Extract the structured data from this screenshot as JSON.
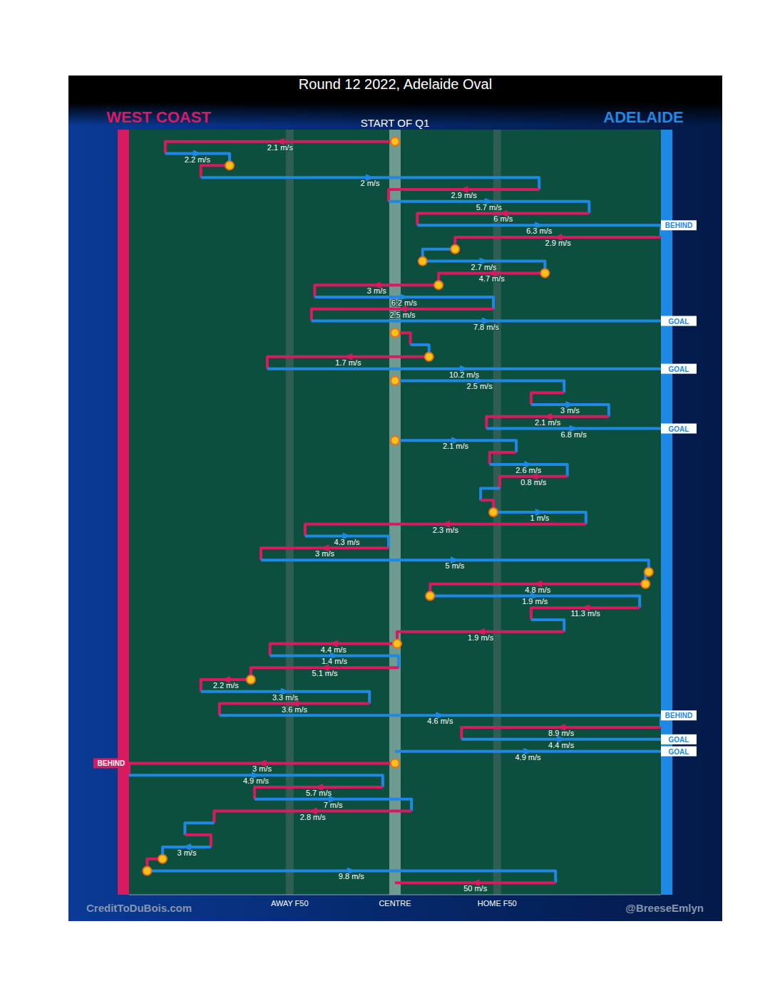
{
  "chart_data": {
    "type": "chain",
    "title": "Round 12 2022, Adelaide Oval",
    "subtitle": "START OF Q1",
    "series": [
      {
        "name": "WEST COAST",
        "color": "#d81b60"
      },
      {
        "name": "ADELAIDE",
        "color": "#1e88e5"
      }
    ],
    "credits": {
      "left": "CreditToDuBois.com",
      "right": "@BreeseEmlyn"
    },
    "speed_unit": "m/s",
    "xlim": [
      0,
      100
    ],
    "xticks": [
      {
        "value": 30.2,
        "label": "AWAY F50"
      },
      {
        "value": 50,
        "label": "CENTRE"
      },
      {
        "value": 69.2,
        "label": "HOME F50"
      }
    ],
    "ylim": [
      -1,
      63
    ],
    "tick_labels": "x",
    "segments": [
      {
        "team": "WEST COAST",
        "from": 50,
        "to": 6.8,
        "speed": 2.1,
        "stoppage": true
      },
      {
        "team": "ADELAIDE",
        "from": 6.8,
        "to": 18.9,
        "speed": 2.2
      },
      {
        "team": "WEST COAST",
        "from": 18.9,
        "to": 13.5,
        "stoppage": true
      },
      {
        "team": "ADELAIDE",
        "from": 13.5,
        "to": 77.1,
        "speed": 2
      },
      {
        "team": "WEST COAST",
        "from": 77.1,
        "to": 48.8,
        "speed": 2.9
      },
      {
        "team": "ADELAIDE",
        "from": 48.8,
        "to": 86.5,
        "speed": 5.7
      },
      {
        "team": "WEST COAST",
        "from": 86.5,
        "to": 54.2,
        "speed": 6
      },
      {
        "team": "ADELAIDE",
        "from": 54.2,
        "to": 100,
        "speed": 6.3,
        "outcome": "BEHIND"
      },
      {
        "team": "WEST COAST",
        "from": 100,
        "to": 61.3,
        "speed": 2.9
      },
      {
        "team": "ADELAIDE",
        "from": 61.3,
        "to": 55.2,
        "stoppage": true
      },
      {
        "team": "ADELAIDE",
        "from": 55.2,
        "to": 78.2,
        "speed": 2.7,
        "stoppage": true
      },
      {
        "team": "WEST COAST",
        "from": 78.2,
        "to": 58.2,
        "speed": 4.7,
        "stoppage": true
      },
      {
        "team": "WEST COAST",
        "from": 58.2,
        "to": 34.9,
        "speed": 3,
        "stoppage": true
      },
      {
        "team": "ADELAIDE",
        "from": 34.9,
        "to": 68.5,
        "speed": 6.2
      },
      {
        "team": "WEST COAST",
        "from": 68.5,
        "to": 34.3,
        "speed": 2.5
      },
      {
        "team": "ADELAIDE",
        "from": 34.3,
        "to": 100,
        "speed": 7.8,
        "outcome": "GOAL"
      },
      {
        "team": "WEST COAST",
        "from": 50,
        "to": 52.9,
        "stoppage": true
      },
      {
        "team": "ADELAIDE",
        "from": 52.9,
        "to": 56.4
      },
      {
        "team": "WEST COAST",
        "from": 56.4,
        "to": 26.0,
        "speed": 1.7,
        "stoppage": true
      },
      {
        "team": "ADELAIDE",
        "from": 26.0,
        "to": 100,
        "speed": 10.2,
        "outcome": "GOAL"
      },
      {
        "team": "ADELAIDE",
        "from": 50,
        "to": 81.8,
        "speed": 2.5,
        "stoppage": true
      },
      {
        "team": "WEST COAST",
        "from": 81.8,
        "to": 75.6
      },
      {
        "team": "ADELAIDE",
        "from": 75.6,
        "to": 90.2,
        "speed": 3
      },
      {
        "team": "WEST COAST",
        "from": 90.2,
        "to": 67.2,
        "speed": 2.1
      },
      {
        "team": "ADELAIDE",
        "from": 67.2,
        "to": 100,
        "speed": 6.8,
        "outcome": "GOAL"
      },
      {
        "team": "ADELAIDE",
        "from": 50,
        "to": 72.8,
        "speed": 2.1,
        "stoppage": true
      },
      {
        "team": "WEST COAST",
        "from": 72.8,
        "to": 67.8
      },
      {
        "team": "ADELAIDE",
        "from": 67.8,
        "to": 82.4,
        "speed": 2.6
      },
      {
        "team": "WEST COAST",
        "from": 82.4,
        "to": 69.7,
        "speed": 0.8
      },
      {
        "team": "ADELAIDE",
        "from": 69.7,
        "to": 66.1
      },
      {
        "team": "WEST COAST",
        "from": 66.1,
        "to": 68.5
      },
      {
        "team": "ADELAIDE",
        "from": 68.5,
        "to": 85.9,
        "speed": 1,
        "stoppage": true
      },
      {
        "team": "WEST COAST",
        "from": 85.9,
        "to": 33.1,
        "speed": 2.3
      },
      {
        "team": "ADELAIDE",
        "from": 33.1,
        "to": 48.8,
        "speed": 4.3
      },
      {
        "team": "WEST COAST",
        "from": 48.8,
        "to": 24.8,
        "speed": 3
      },
      {
        "team": "ADELAIDE",
        "from": 24.8,
        "to": 97.7,
        "speed": 5
      },
      {
        "team": "ADELAIDE",
        "from": 97.7,
        "to": 97.1,
        "stoppage": true
      },
      {
        "team": "WEST COAST",
        "from": 97.1,
        "to": 56.6,
        "speed": 4.8,
        "stoppage": true
      },
      {
        "team": "ADELAIDE",
        "from": 56.6,
        "to": 96.0,
        "speed": 1.9,
        "stoppage": true
      },
      {
        "team": "WEST COAST",
        "from": 96.0,
        "to": 75.6,
        "speed": 11.3
      },
      {
        "team": "ADELAIDE",
        "from": 75.6,
        "to": 81.8
      },
      {
        "team": "WEST COAST",
        "from": 81.8,
        "to": 50.4,
        "speed": 1.9
      },
      {
        "team": "WEST COAST",
        "from": 50.4,
        "to": 26.5,
        "speed": 4.4,
        "stoppage": true
      },
      {
        "team": "ADELAIDE",
        "from": 26.5,
        "to": 50.7,
        "speed": 1.4
      },
      {
        "team": "WEST COAST",
        "from": 50.7,
        "to": 22.9,
        "speed": 5.1
      },
      {
        "team": "WEST COAST",
        "from": 22.9,
        "to": 13.5,
        "speed": 2.2,
        "stoppage": true
      },
      {
        "team": "ADELAIDE",
        "from": 13.5,
        "to": 45.2,
        "speed": 3.3
      },
      {
        "team": "WEST COAST",
        "from": 45.2,
        "to": 17.0,
        "speed": 3.6
      },
      {
        "team": "ADELAIDE",
        "from": 17.0,
        "to": 100,
        "speed": 4.6,
        "outcome": "BEHIND"
      },
      {
        "team": "WEST COAST",
        "from": 100,
        "to": 62.5,
        "speed": 8.9
      },
      {
        "team": "ADELAIDE",
        "from": 62.5,
        "to": 100,
        "speed": 4.4,
        "outcome": "GOAL"
      },
      {
        "team": "ADELAIDE",
        "from": 50,
        "to": 100,
        "speed": 4.9,
        "outcome": "GOAL"
      },
      {
        "team": "WEST COAST",
        "from": 50,
        "to": 0,
        "speed": 3,
        "stoppage": true,
        "outcome": "BEHIND"
      },
      {
        "team": "ADELAIDE",
        "from": 0,
        "to": 47.7,
        "speed": 4.9
      },
      {
        "team": "WEST COAST",
        "from": 47.7,
        "to": 23.6,
        "speed": 5.7
      },
      {
        "team": "ADELAIDE",
        "from": 23.6,
        "to": 53.1,
        "speed": 7
      },
      {
        "team": "WEST COAST",
        "from": 53.1,
        "to": 16.0,
        "speed": 2.8
      },
      {
        "team": "ADELAIDE",
        "from": 16.0,
        "to": 10.5
      },
      {
        "team": "WEST COAST",
        "from": 10.5,
        "to": 15.4
      },
      {
        "team": "ADELAIDE",
        "from": 15.4,
        "to": 6.3,
        "speed": 3
      },
      {
        "team": "WEST COAST",
        "from": 6.3,
        "to": 3.4,
        "stoppage": true
      },
      {
        "team": "ADELAIDE",
        "from": 3.4,
        "to": 80.2,
        "speed": 9.8,
        "stoppage": true
      },
      {
        "team": "WEST COAST",
        "from": 80.2,
        "to": 50,
        "speed": 50
      }
    ]
  }
}
